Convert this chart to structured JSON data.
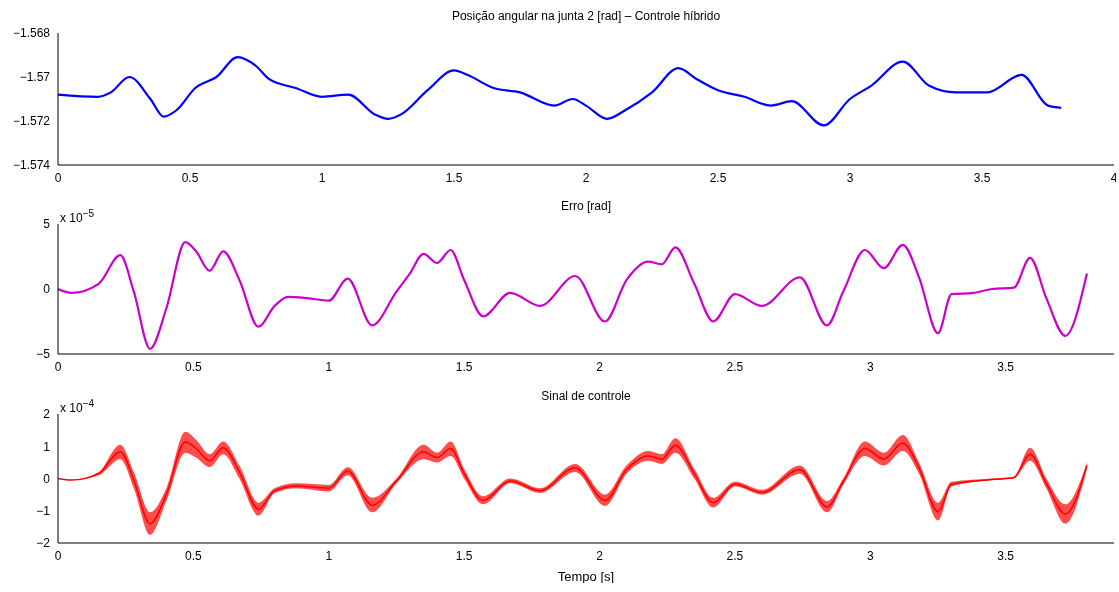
{
  "chart_data": [
    {
      "type": "line",
      "title": "Posição angular na junta 2 [rad] – Controle híbrido",
      "xlim": [
        0,
        4
      ],
      "xticks": [
        0,
        0.5,
        1,
        1.5,
        2,
        2.5,
        3,
        3.5,
        4
      ],
      "ylim": [
        -1.574,
        -1.568
      ],
      "yticks": [
        -1.574,
        -1.572,
        -1.57,
        -1.568
      ],
      "series": [
        {
          "color": "#0000ff",
          "x": [
            0,
            0.15,
            0.2,
            0.27,
            0.35,
            0.4,
            0.45,
            0.52,
            0.6,
            0.68,
            0.75,
            0.8,
            0.9,
            1.0,
            1.1,
            1.2,
            1.25,
            1.3,
            1.4,
            1.5,
            1.55,
            1.65,
            1.75,
            1.88,
            1.95,
            2.0,
            2.08,
            2.15,
            2.25,
            2.35,
            2.42,
            2.5,
            2.6,
            2.7,
            2.78,
            2.9,
            3.0,
            3.08,
            3.2,
            3.3,
            3.4,
            3.52,
            3.65,
            3.75,
            3.8
          ],
          "values": [
            -1.5708,
            -1.5709,
            -1.5707,
            -1.57,
            -1.571,
            -1.5718,
            -1.5715,
            -1.5705,
            -1.57,
            -1.5691,
            -1.5695,
            -1.5701,
            -1.5705,
            -1.5709,
            -1.5708,
            -1.5717,
            -1.5719,
            -1.5717,
            -1.5706,
            -1.5697,
            -1.5699,
            -1.5705,
            -1.5707,
            -1.5713,
            -1.571,
            -1.5713,
            -1.5719,
            -1.5715,
            -1.5707,
            -1.5696,
            -1.5701,
            -1.5706,
            -1.5709,
            -1.5713,
            -1.5711,
            -1.5722,
            -1.571,
            -1.5704,
            -1.5693,
            -1.5704,
            -1.5707,
            -1.5707,
            -1.5699,
            -1.5713,
            -1.5714
          ]
        }
      ]
    },
    {
      "type": "line",
      "title": "Erro [rad]",
      "annotations": [
        "x 10$^{−5}$"
      ],
      "xlim": [
        0,
        3.9
      ],
      "xticks": [
        0,
        0.5,
        1,
        1.5,
        2,
        2.5,
        3,
        3.5
      ],
      "ylim": [
        -5,
        5
      ],
      "yticks": [
        -5,
        0,
        5
      ],
      "series": [
        {
          "color": "#cc00cc",
          "x": [
            0,
            0.05,
            0.15,
            0.23,
            0.28,
            0.34,
            0.4,
            0.47,
            0.51,
            0.56,
            0.61,
            0.67,
            0.74,
            0.8,
            0.85,
            0.92,
            1.0,
            1.07,
            1.16,
            1.25,
            1.3,
            1.35,
            1.4,
            1.45,
            1.5,
            1.57,
            1.67,
            1.78,
            1.91,
            2.02,
            2.1,
            2.18,
            2.23,
            2.28,
            2.35,
            2.42,
            2.5,
            2.6,
            2.74,
            2.84,
            2.9,
            2.98,
            3.05,
            3.12,
            3.18,
            3.25,
            3.3,
            3.38,
            3.45,
            3.53,
            3.59,
            3.65,
            3.72,
            3.8
          ],
          "values": [
            0,
            -0.3,
            0.4,
            2.6,
            -0.2,
            -4.6,
            -1.5,
            3.6,
            2.9,
            1.4,
            2.9,
            0.7,
            -2.9,
            -1.3,
            -0.6,
            -0.7,
            -0.9,
            0.8,
            -2.8,
            -0.2,
            1.2,
            2.7,
            2.0,
            3.0,
            0.7,
            -2.1,
            -0.3,
            -1.3,
            1.0,
            -2.5,
            0.7,
            2.1,
            1.9,
            3.2,
            0.4,
            -2.5,
            -0.4,
            -1.3,
            0.9,
            -2.8,
            -0.2,
            3.0,
            1.6,
            3.4,
            0.9,
            -3.4,
            -0.4,
            -0.3,
            0,
            0.1,
            2.4,
            -0.7,
            -3.6,
            1.2
          ]
        }
      ]
    },
    {
      "type": "line",
      "title": "Sinal de controle",
      "xlabel": "Tempo [s]",
      "annotations": [
        "x 10$^{−4}$"
      ],
      "xlim": [
        0,
        3.9
      ],
      "xticks": [
        0,
        0.5,
        1,
        1.5,
        2,
        2.5,
        3,
        3.5
      ],
      "ylim": [
        -2,
        2
      ],
      "yticks": [
        -2,
        -1,
        0,
        1,
        2
      ],
      "series": [
        {
          "color": "#ff0000",
          "x": [
            0,
            0.05,
            0.15,
            0.23,
            0.28,
            0.34,
            0.4,
            0.47,
            0.51,
            0.56,
            0.61,
            0.67,
            0.74,
            0.8,
            0.88,
            1.0,
            1.07,
            1.16,
            1.25,
            1.35,
            1.4,
            1.45,
            1.5,
            1.57,
            1.67,
            1.78,
            1.91,
            2.02,
            2.1,
            2.18,
            2.23,
            2.28,
            2.35,
            2.42,
            2.5,
            2.6,
            2.74,
            2.84,
            2.9,
            2.98,
            3.05,
            3.12,
            3.18,
            3.25,
            3.3,
            3.45,
            3.53,
            3.59,
            3.65,
            3.72,
            3.8
          ],
          "upper": [
            0,
            -0.05,
            0.2,
            1.05,
            0.2,
            -1.05,
            -0.3,
            1.45,
            1.2,
            0.75,
            1.15,
            0.4,
            -0.75,
            -0.3,
            -0.15,
            -0.2,
            0.35,
            -0.6,
            0,
            1.05,
            0.8,
            1.15,
            0.3,
            -0.55,
            0,
            -0.3,
            0.45,
            -0.5,
            0.4,
            0.85,
            0.75,
            1.25,
            0.3,
            -0.6,
            -0.1,
            -0.35,
            0.4,
            -0.7,
            0,
            1.15,
            0.8,
            1.35,
            0.5,
            -0.75,
            -0.1,
            0,
            0.05,
            0.95,
            0,
            -0.8,
            0.5
          ],
          "lower": [
            0,
            -0.05,
            0.1,
            0.6,
            -0.3,
            -1.75,
            -0.7,
            0.8,
            0.65,
            0.35,
            0.75,
            0,
            -1.15,
            -0.45,
            -0.3,
            -0.4,
            0.1,
            -1.05,
            -0.15,
            0.6,
            0.5,
            0.7,
            0,
            -0.8,
            -0.15,
            -0.45,
            0.2,
            -0.85,
            0.15,
            0.55,
            0.45,
            0.8,
            0,
            -0.9,
            -0.25,
            -0.5,
            0.15,
            -1.05,
            -0.2,
            0.7,
            0.4,
            0.85,
            0.15,
            -1.3,
            -0.25,
            -0.05,
            0,
            0.55,
            -0.3,
            -1.4,
            0.3
          ],
          "values": [
            0,
            -0.05,
            0.15,
            0.83,
            -0.05,
            -1.4,
            -0.5,
            1.13,
            0.93,
            0.55,
            0.95,
            0.2,
            -0.95,
            -0.38,
            -0.23,
            -0.3,
            0.23,
            -0.83,
            -0.08,
            0.83,
            0.65,
            0.93,
            0.15,
            -0.68,
            -0.08,
            -0.38,
            0.33,
            -0.68,
            0.28,
            0.7,
            0.6,
            1.03,
            0.15,
            -0.75,
            -0.18,
            -0.43,
            0.28,
            -0.88,
            -0.1,
            0.93,
            0.6,
            1.1,
            0.33,
            -1.03,
            -0.18,
            -0.03,
            0.03,
            0.75,
            -0.15,
            -1.1,
            0.4
          ]
        }
      ]
    }
  ]
}
